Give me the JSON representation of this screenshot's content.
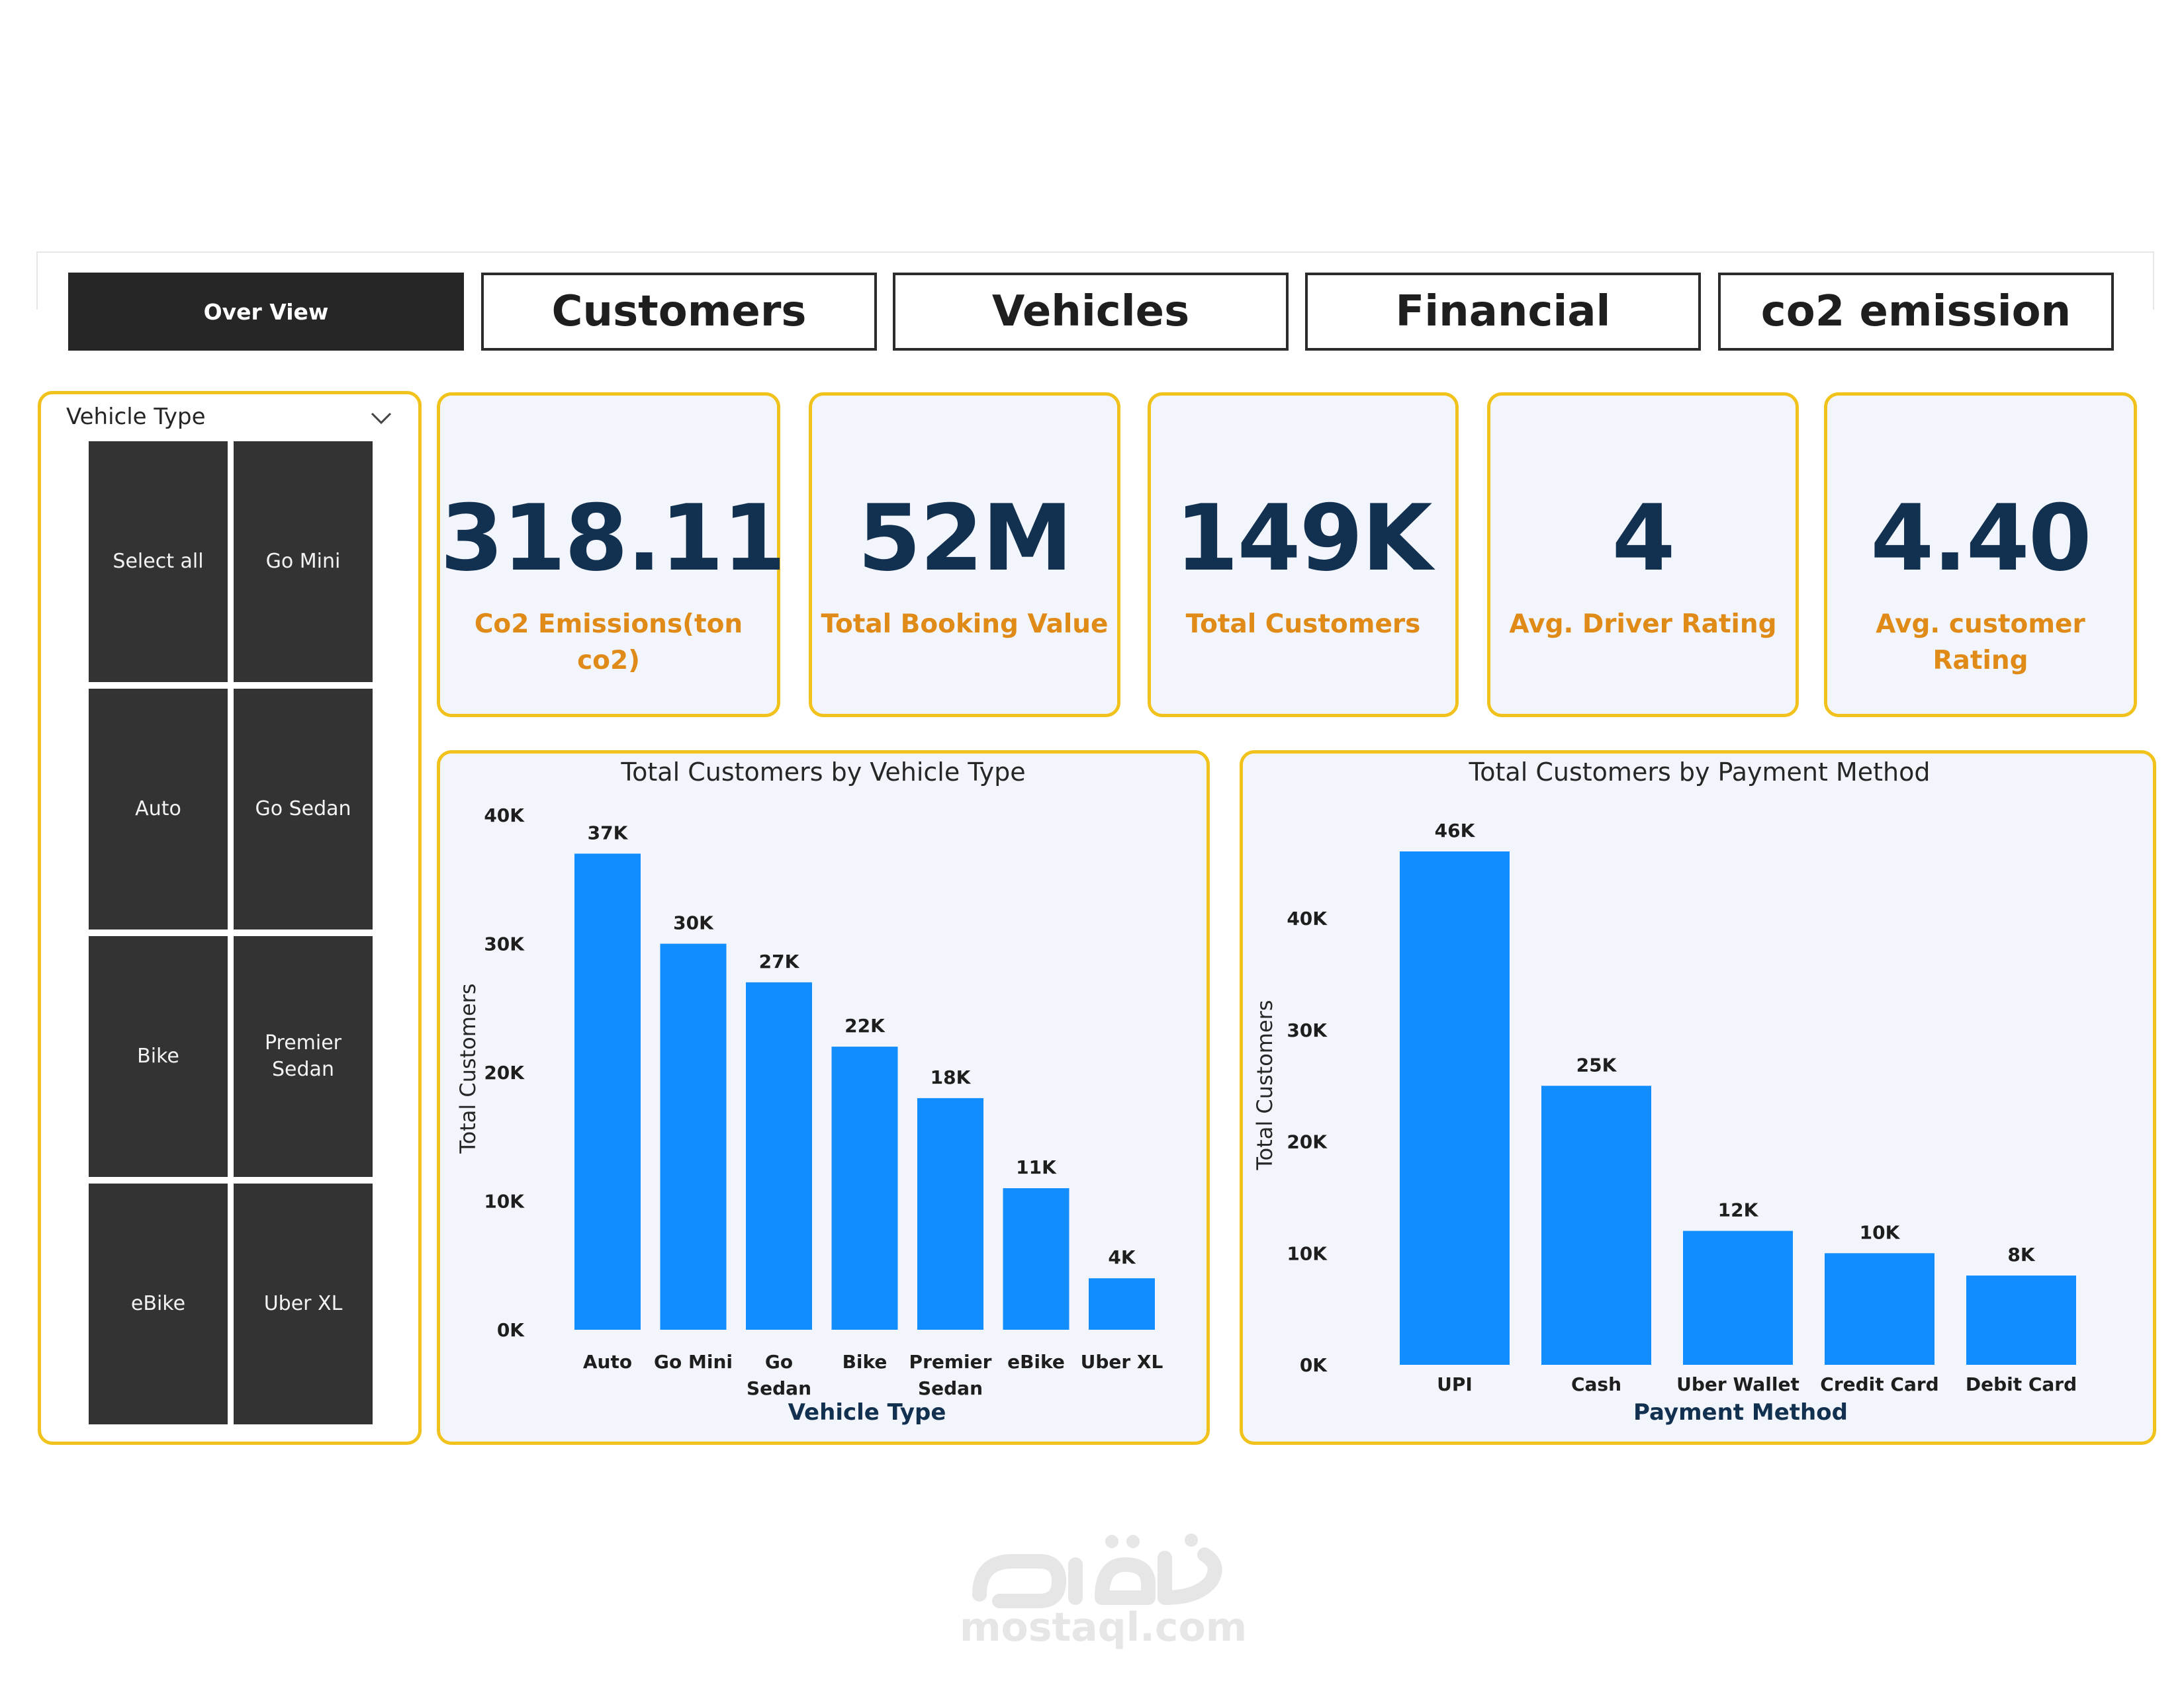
{
  "tabs": [
    {
      "label": "Over View",
      "active": true
    },
    {
      "label": "Customers",
      "active": false
    },
    {
      "label": "Vehicles",
      "active": false
    },
    {
      "label": "Financial",
      "active": false
    },
    {
      "label": "co2 emission",
      "active": false
    }
  ],
  "slicer": {
    "title": "Vehicle Type",
    "icon": "chevron-down-icon",
    "options": [
      "Select all",
      "Go Mini",
      "Auto",
      "Go Sedan",
      "Bike",
      "Premier Sedan",
      "eBike",
      "Uber XL"
    ]
  },
  "kpis": [
    {
      "value": "318.11",
      "label": "Co2 Emissions(ton co2)"
    },
    {
      "value": "52M",
      "label": "Total Booking Value"
    },
    {
      "value": "149K",
      "label": "Total Customers"
    },
    {
      "value": "4",
      "label": "Avg. Driver Rating"
    },
    {
      "value": "4.40",
      "label": "Avg. customer Rating"
    }
  ],
  "colors": {
    "accent": "#f1c21b",
    "bar": "#118dff",
    "kpi_value": "#12304f",
    "kpi_label": "#e08a17"
  },
  "chart_data": [
    {
      "type": "bar",
      "title": "Total Customers by Vehicle Type",
      "xlabel": "Vehicle Type",
      "ylabel": "Total Customers",
      "categories": [
        "Auto",
        "Go Mini",
        "Go Sedan",
        "Bike",
        "Premier Sedan",
        "eBike",
        "Uber XL"
      ],
      "values": [
        37,
        30,
        27,
        22,
        18,
        11,
        4
      ],
      "data_labels": [
        "37K",
        "30K",
        "27K",
        "22K",
        "18K",
        "11K",
        "4K"
      ],
      "yticks": [
        0,
        10,
        20,
        30,
        40
      ],
      "ytick_labels": [
        "0K",
        "10K",
        "20K",
        "30K",
        "40K"
      ],
      "ylim": [
        0,
        40
      ]
    },
    {
      "type": "bar",
      "title": "Total Customers by Payment Method",
      "xlabel": "Payment Method",
      "ylabel": "Total Customers",
      "categories": [
        "UPI",
        "Cash",
        "Uber Wallet",
        "Credit Card",
        "Debit Card"
      ],
      "values": [
        46,
        25,
        12,
        10,
        8
      ],
      "data_labels": [
        "46K",
        "25K",
        "12K",
        "10K",
        "8K"
      ],
      "yticks": [
        0,
        10,
        20,
        30,
        40
      ],
      "ytick_labels": [
        "0K",
        "10K",
        "20K",
        "30K",
        "40K"
      ],
      "ylim": [
        0,
        46
      ]
    }
  ],
  "watermark": {
    "text": "mostaql.com"
  }
}
